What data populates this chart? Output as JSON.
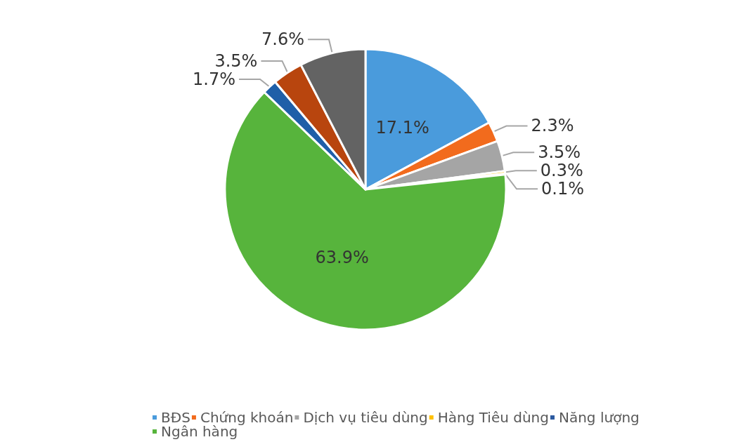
{
  "chart_data": {
    "type": "pie",
    "categories": [
      "BĐS",
      "Chứng khoán",
      "Dịch vụ tiêu dùng",
      "Hàng Tiêu dùng",
      "Năng lượng",
      "Ngân hàng",
      null,
      null,
      null
    ],
    "values": [
      17.1,
      2.3,
      3.5,
      0.3,
      0.1,
      63.9,
      1.7,
      3.5,
      7.6
    ],
    "value_labels": [
      "17.1%",
      "2.3%",
      "3.5%",
      "0.3%",
      "0.1%",
      "63.9%",
      "1.7%",
      "3.5%",
      "7.6%"
    ],
    "colors": [
      "#4a9bdc",
      "#f26b1d",
      "#a5a5a5",
      "#ffc000",
      "#2c5aa0",
      "#57b43c",
      "#1f5fa8",
      "#b8450e",
      "#636363"
    ],
    "legend": "bottom"
  }
}
